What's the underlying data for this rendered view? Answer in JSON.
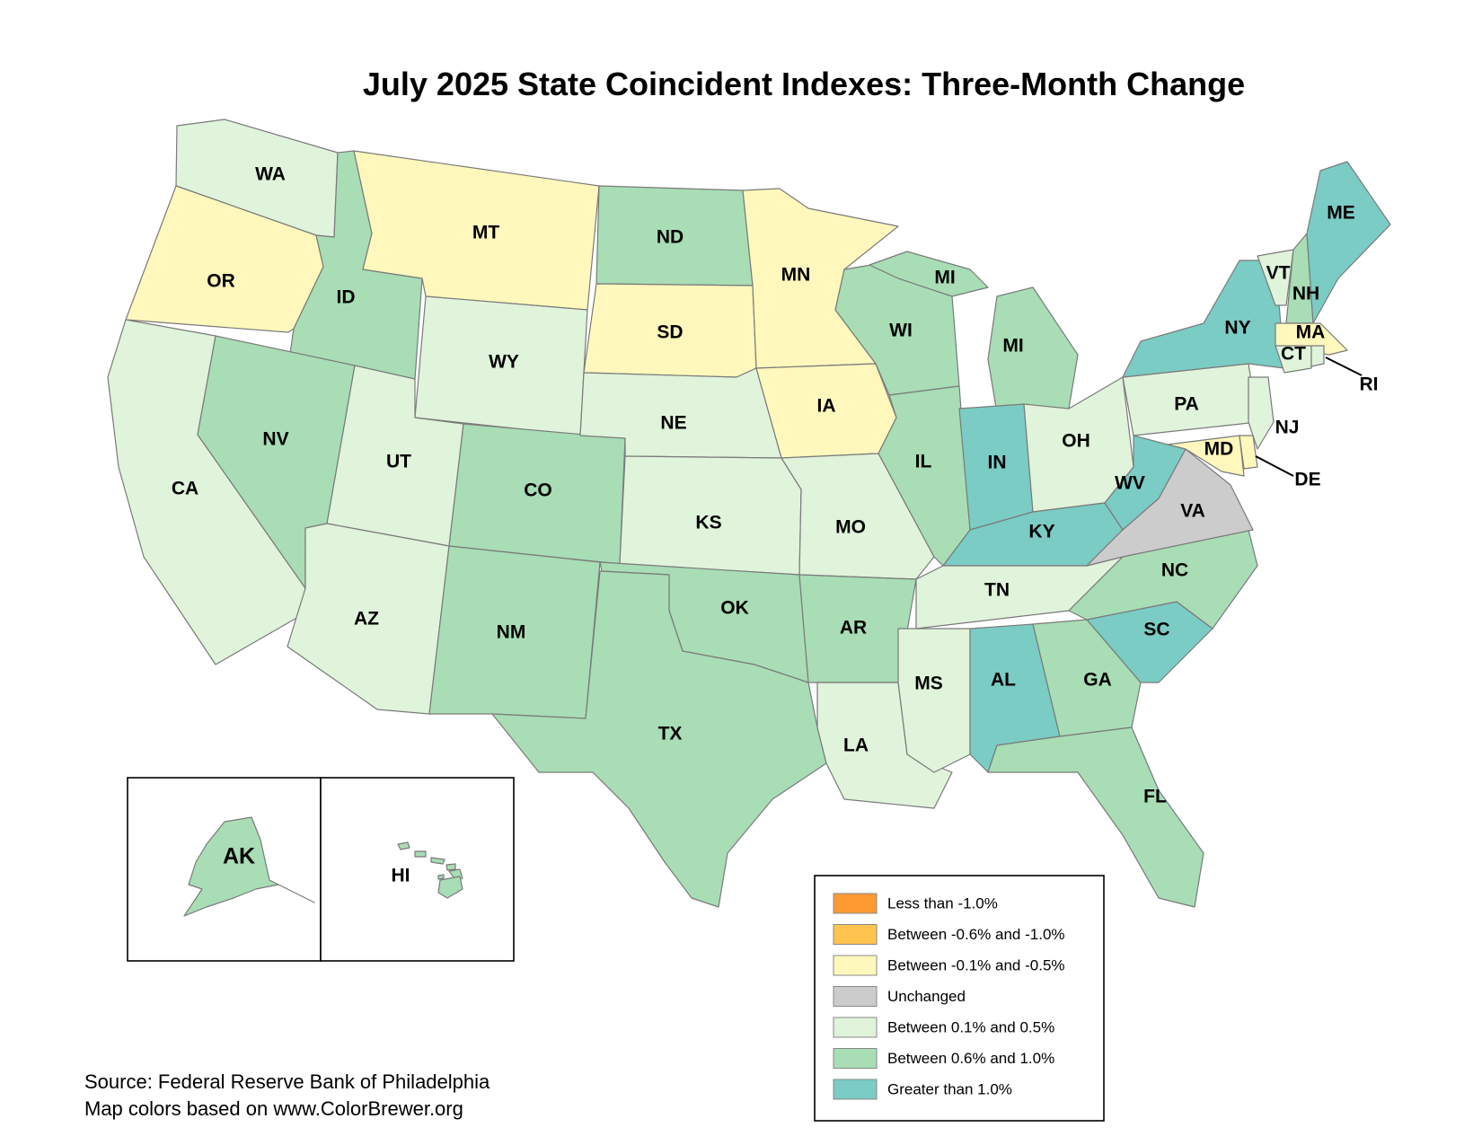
{
  "title": "July 2025 State Coincident Indexes: Three-Month Change",
  "colors": {
    "lt_neg1": "#fd9a32",
    "neg06_10": "#fec44f",
    "neg01_05": "#fff7bc",
    "unchanged": "#cccccc",
    "pos01_05": "#e0f3db",
    "pos06_10": "#a8ddb5",
    "gt1": "#7accc4"
  },
  "legend": [
    {
      "key": "lt_neg1",
      "label": "Less than -1.0%"
    },
    {
      "key": "neg06_10",
      "label": "Between -0.6% and -1.0%"
    },
    {
      "key": "neg01_05",
      "label": "Between -0.1% and -0.5%"
    },
    {
      "key": "unchanged",
      "label": "Unchanged"
    },
    {
      "key": "pos01_05",
      "label": "Between 0.1% and 0.5%"
    },
    {
      "key": "pos06_10",
      "label": "Between 0.6% and 1.0%"
    },
    {
      "key": "gt1",
      "label": "Greater than 1.0%"
    }
  ],
  "states": {
    "WA": "pos01_05",
    "OR": "neg01_05",
    "CA": "pos01_05",
    "ID": "pos06_10",
    "NV": "pos06_10",
    "MT": "neg01_05",
    "WY": "pos01_05",
    "UT": "pos01_05",
    "AZ": "pos01_05",
    "CO": "pos06_10",
    "NM": "pos06_10",
    "ND": "pos06_10",
    "SD": "neg01_05",
    "NE": "pos01_05",
    "KS": "pos01_05",
    "OK": "pos06_10",
    "TX": "pos06_10",
    "MN": "neg01_05",
    "IA": "neg01_05",
    "MO": "pos01_05",
    "AR": "pos06_10",
    "LA": "pos01_05",
    "WI": "pos06_10",
    "IL": "pos06_10",
    "MI": "pos06_10",
    "IN": "gt1",
    "OH": "pos01_05",
    "KY": "gt1",
    "TN": "pos01_05",
    "MS": "pos01_05",
    "AL": "gt1",
    "GA": "pos06_10",
    "FL": "pos06_10",
    "SC": "gt1",
    "NC": "pos06_10",
    "VA": "unchanged",
    "WV": "gt1",
    "PA": "pos01_05",
    "NY": "gt1",
    "VT": "pos01_05",
    "NH": "pos06_10",
    "ME": "gt1",
    "MA": "neg01_05",
    "RI": "pos01_05",
    "CT": "pos01_05",
    "NJ": "pos01_05",
    "DE": "neg01_05",
    "MD": "neg01_05",
    "AK": "pos06_10",
    "HI": "pos06_10"
  },
  "labels": {
    "WA": "WA",
    "OR": "OR",
    "CA": "CA",
    "ID": "ID",
    "NV": "NV",
    "MT": "MT",
    "WY": "WY",
    "UT": "UT",
    "AZ": "AZ",
    "CO": "CO",
    "NM": "NM",
    "ND": "ND",
    "SD": "SD",
    "NE": "NE",
    "KS": "KS",
    "OK": "OK",
    "TX": "TX",
    "MN": "MN",
    "IA": "IA",
    "MO": "MO",
    "AR": "AR",
    "LA": "LA",
    "WI": "WI",
    "IL": "IL",
    "MI": "MI",
    "MI_UP": "MI",
    "IN": "IN",
    "OH": "OH",
    "KY": "KY",
    "TN": "TN",
    "MS": "MS",
    "AL": "AL",
    "GA": "GA",
    "FL": "FL",
    "SC": "SC",
    "NC": "NC",
    "VA": "VA",
    "WV": "WV",
    "PA": "PA",
    "NY": "NY",
    "VT": "VT",
    "NH": "NH",
    "ME": "ME",
    "MA": "MA",
    "RI": "RI",
    "CT": "CT",
    "NJ": "NJ",
    "DE": "DE",
    "MD": "MD",
    "AK": "AK",
    "HI": "HI"
  },
  "source": {
    "line1": "Source: Federal Reserve Bank of Philadelphia",
    "line2": "Map colors based on www.ColorBrewer.org"
  }
}
